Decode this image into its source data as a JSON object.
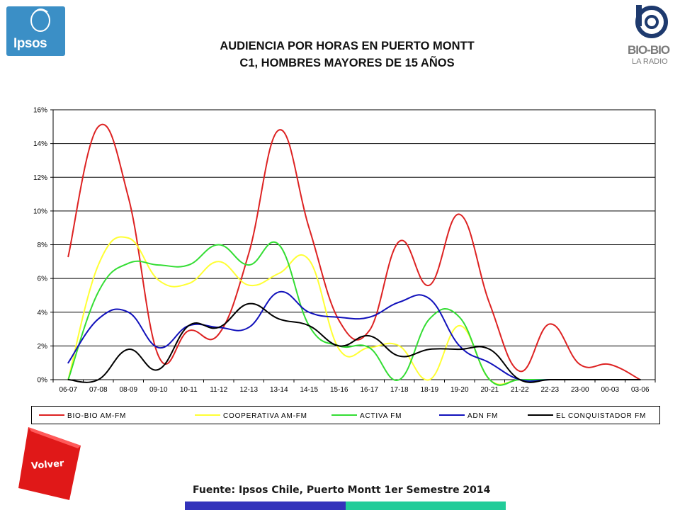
{
  "brand": {
    "ipsos_text": "Ipsos",
    "ipsos_color": "#3b8fc6",
    "biobio_text": "BIO-BIO",
    "biobio_sub": "LA RADIO"
  },
  "header": {
    "title_line1": "AUDIENCIA POR HORAS EN PUERTO MONTT",
    "title_line2": "C1, HOMBRES MAYORES DE 15 AÑOS"
  },
  "footer": {
    "source": "Fuente: Ipsos Chile, Puerto Montt 1er Semestre 2014",
    "back_button": "Volver",
    "back_button_color": "#e01818",
    "bar_colors": [
      "#3333bb",
      "#22cc99"
    ]
  },
  "chart_data": {
    "type": "line",
    "title": "AUDIENCIA POR HORAS EN PUERTO MONTT",
    "subtitle": "C1, HOMBRES MAYORES DE 15 AÑOS",
    "categories": [
      "06-07",
      "07-08",
      "08-09",
      "09-10",
      "10-11",
      "11-12",
      "12-13",
      "13-14",
      "14-15",
      "15-16",
      "16-17",
      "17-18",
      "18-19",
      "19-20",
      "20-21",
      "21-22",
      "22-23",
      "23-00",
      "00-03",
      "03-06"
    ],
    "ylim": [
      0,
      16
    ],
    "yticks": [
      0,
      2,
      4,
      6,
      8,
      10,
      12,
      14,
      16
    ],
    "ytick_labels": [
      "0%",
      "2%",
      "4%",
      "6%",
      "8%",
      "10%",
      "12%",
      "14%",
      "16%"
    ],
    "grid": "horizontal",
    "legend_position": "bottom",
    "series": [
      {
        "name": "BIO-BIO AM-FM",
        "color": "#dd2222",
        "values": [
          7.3,
          15.0,
          10.8,
          1.4,
          2.9,
          2.7,
          7.5,
          14.8,
          9.0,
          3.5,
          2.9,
          8.2,
          5.6,
          9.8,
          4.5,
          0.5,
          3.3,
          0.9,
          0.9,
          0.0
        ]
      },
      {
        "name": "COOPERATIVA AM-FM",
        "color": "#ffff33",
        "values": [
          0.0,
          6.8,
          8.4,
          5.9,
          5.7,
          7.0,
          5.6,
          6.3,
          7.1,
          1.8,
          1.9,
          2.0,
          0.0,
          3.2,
          0.0,
          0.0,
          0.0,
          0.0,
          0.0,
          0.0
        ]
      },
      {
        "name": "ACTIVA FM",
        "color": "#33dd33",
        "values": [
          0.0,
          5.2,
          6.9,
          6.8,
          6.8,
          8.0,
          6.8,
          8.0,
          3.2,
          2.0,
          1.9,
          0.0,
          3.6,
          3.7,
          0.0,
          0.0,
          0.0,
          0.0,
          0.0,
          0.0
        ]
      },
      {
        "name": "ADN FM",
        "color": "#1111bb",
        "values": [
          1.0,
          3.6,
          4.0,
          1.9,
          3.2,
          3.1,
          3.1,
          5.2,
          4.0,
          3.7,
          3.7,
          4.6,
          4.8,
          2.0,
          1.0,
          0.0,
          0.0,
          0.0,
          0.0,
          0.0
        ]
      },
      {
        "name": "EL CONQUISTADOR FM",
        "color": "#000000",
        "values": [
          0.0,
          0.0,
          1.8,
          0.6,
          3.2,
          3.1,
          4.5,
          3.6,
          3.2,
          2.0,
          2.6,
          1.4,
          1.8,
          1.8,
          1.8,
          0.0,
          0.0,
          0.0,
          0.0,
          0.0
        ]
      }
    ]
  }
}
